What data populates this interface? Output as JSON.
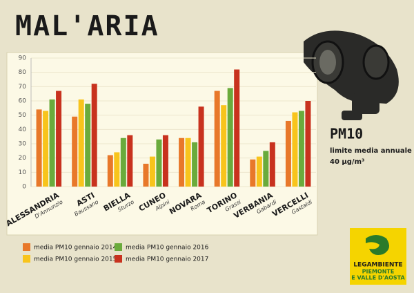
{
  "chart_data": {
    "type": "bar",
    "title": "MAL'ARIA",
    "categories": [
      "ALESSANDRIA",
      "ASTI",
      "BIELLA",
      "CUNEO",
      "NOVARA",
      "TORINO",
      "VERBANIA",
      "VERCELLI"
    ],
    "stations": [
      "D'Annunzio",
      "Baussano",
      "Sturzo",
      "Alpini",
      "Roma",
      "Grassi",
      "Gabardi",
      "Gastaldi"
    ],
    "series": [
      {
        "name": "media PM10 gennaio 2014",
        "color": "#e8782a",
        "values": [
          54,
          49,
          22,
          16,
          34,
          67,
          19,
          46
        ]
      },
      {
        "name": "media PM10 gennaio 2015",
        "color": "#f8c41c",
        "values": [
          53,
          61,
          24,
          21,
          34,
          57,
          21,
          52
        ]
      },
      {
        "name": "media PM10 gennaio 2016",
        "color": "#6aab3c",
        "values": [
          61,
          58,
          34,
          33,
          31,
          69,
          25,
          53
        ]
      },
      {
        "name": "media PM10 gennaio 2017",
        "color": "#c8321e",
        "values": [
          67,
          72,
          36,
          36,
          56,
          82,
          31,
          60
        ]
      }
    ],
    "ylim": [
      0,
      90
    ],
    "yticks": [
      0,
      10,
      20,
      30,
      40,
      50,
      60,
      70,
      80,
      90
    ],
    "grid": true
  },
  "sidebar": {
    "title": "PM10",
    "line1": "limite media annuale",
    "line2": "40 µg/m³"
  },
  "logo": {
    "name": "LEGAMBIENTE",
    "region1": "PIEMONTE",
    "region2": "E VALLE D'AOSTA"
  }
}
